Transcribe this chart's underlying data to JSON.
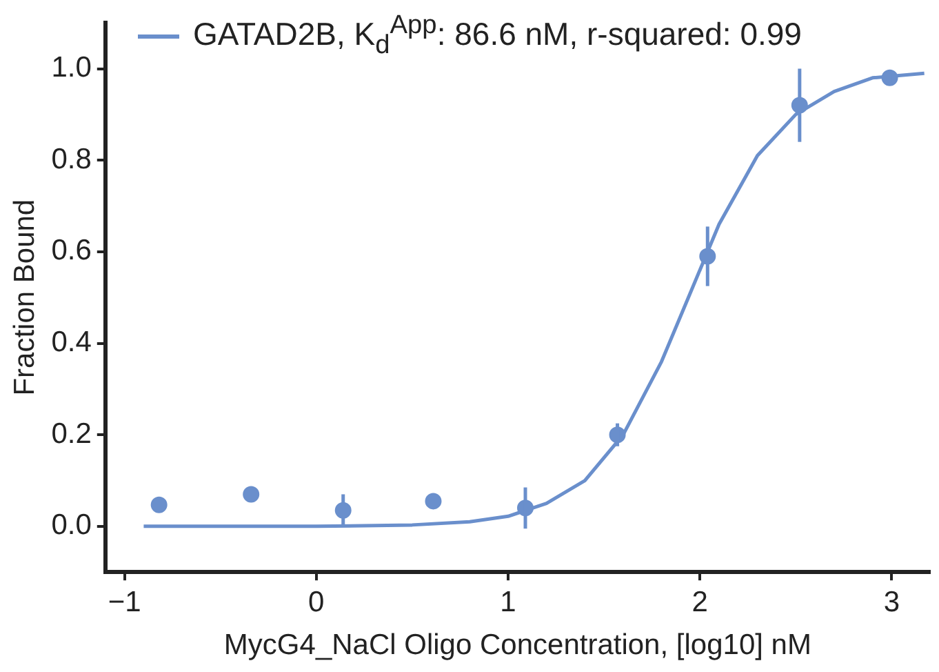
{
  "chart_data": {
    "type": "scatter",
    "xlabel": "MycG4_NaCl Oligo Concentration, [log10] nM",
    "ylabel": "Fraction Bound",
    "xlim": [
      -1.1,
      3.2
    ],
    "ylim": [
      -0.1,
      1.1
    ],
    "xticks": [
      {
        "value": -1,
        "label": "−1"
      },
      0,
      1,
      2,
      3
    ],
    "yticks": [
      {
        "value": 0,
        "label": "0.0"
      },
      {
        "value": 0.2,
        "label": "0.2"
      },
      {
        "value": 0.4,
        "label": "0.4"
      },
      {
        "value": 0.6,
        "label": "0.6"
      },
      {
        "value": 0.8,
        "label": "0.8"
      },
      {
        "value": 1,
        "label": "1.0"
      }
    ],
    "grid": false,
    "legend": "top",
    "marker": "circle",
    "series": [
      {
        "type": "scatter",
        "color": "#6a8fcc",
        "x": [
          -0.82,
          -0.34,
          0.14,
          0.61,
          1.09,
          1.57,
          2.04,
          2.52,
          2.99
        ],
        "values": [
          0.047,
          0.07,
          0.035,
          0.055,
          0.04,
          0.2,
          0.59,
          0.92,
          0.98
        ],
        "errors": [
          null,
          null,
          0.035,
          null,
          0.045,
          0.025,
          0.065,
          0.08,
          0.01
        ]
      },
      {
        "type": "line",
        "name": "GATAD2B, K$_{d}$$^{App}$: 86.6 nM, r-squared: 0.99",
        "color": "#6a8fcc",
        "line_style": "solid",
        "marker": "none",
        "x": [
          -0.9,
          0,
          0.5,
          0.8,
          1.0,
          1.2,
          1.4,
          1.6,
          1.8,
          1.94,
          2.1,
          2.3,
          2.5,
          2.7,
          2.9,
          3.17
        ],
        "values": [
          0,
          0,
          0.003,
          0.01,
          0.022,
          0.05,
          0.1,
          0.2,
          0.36,
          0.5,
          0.66,
          0.81,
          0.9,
          0.95,
          0.98,
          0.99
        ]
      }
    ]
  }
}
